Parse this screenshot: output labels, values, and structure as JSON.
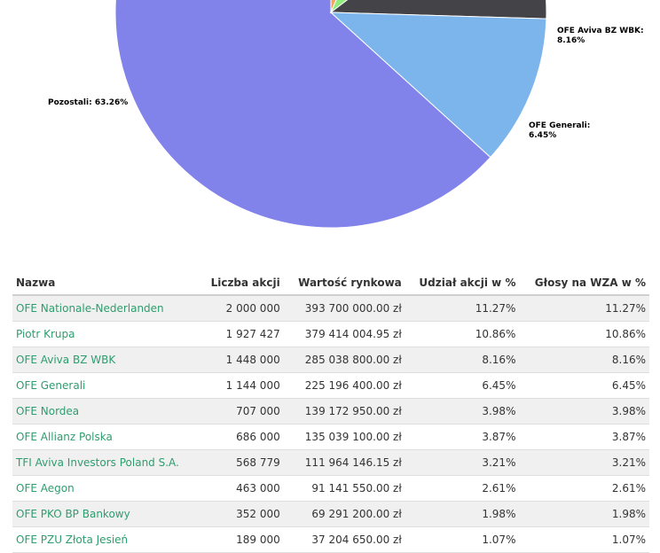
{
  "chart_data": {
    "type": "pie",
    "slices": [
      {
        "label": "Pozostali",
        "value": 63.26,
        "display": "Pozostali: 63.26%",
        "color": "#8183ea"
      },
      {
        "label": "OFE Generali",
        "value": 6.45,
        "display": "OFE Generali: 6.45%",
        "color": "#f7a35c"
      },
      {
        "label": "OFE Aviva BZ WBK",
        "value": 8.16,
        "display": "OFE Aviva BZ WBK: 8.16%",
        "color": "#90ed7d"
      },
      {
        "label": "Piotr Krupa",
        "value": 10.86,
        "display": "",
        "color": "#434348"
      },
      {
        "label": "OFE Nationale-Nederlanden",
        "value": 11.27,
        "display": "",
        "color": "#7cb5ec"
      }
    ]
  },
  "table": {
    "headers": [
      "Nazwa",
      "Liczba akcji",
      "Wartość rynkowa",
      "Udział akcji w %",
      "Głosy na WZA w %"
    ],
    "rows": [
      [
        "OFE Nationale-Nederlanden",
        "2 000 000",
        "393 700 000.00 zł",
        "11.27%",
        "11.27%"
      ],
      [
        "Piotr Krupa",
        "1 927 427",
        "379 414 004.95 zł",
        "10.86%",
        "10.86%"
      ],
      [
        "OFE Aviva BZ WBK",
        "1 448 000",
        "285 038 800.00 zł",
        "8.16%",
        "8.16%"
      ],
      [
        "OFE Generali",
        "1 144 000",
        "225 196 400.00 zł",
        "6.45%",
        "6.45%"
      ],
      [
        "OFE Nordea",
        "707 000",
        "139 172 950.00 zł",
        "3.98%",
        "3.98%"
      ],
      [
        "OFE Allianz Polska",
        "686 000",
        "135 039 100.00 zł",
        "3.87%",
        "3.87%"
      ],
      [
        "TFI Aviva Investors Poland S.A.",
        "568 779",
        "111 964 146.15 zł",
        "3.21%",
        "3.21%"
      ],
      [
        "OFE Aegon",
        "463 000",
        "91 141 550.00 zł",
        "2.61%",
        "2.61%"
      ],
      [
        "OFE PKO BP Bankowy",
        "352 000",
        "69 291 200.00 zł",
        "1.98%",
        "1.98%"
      ],
      [
        "OFE PZU Złota Jesień",
        "189 000",
        "37 204 650.00 zł",
        "1.07%",
        "1.07%"
      ]
    ]
  }
}
